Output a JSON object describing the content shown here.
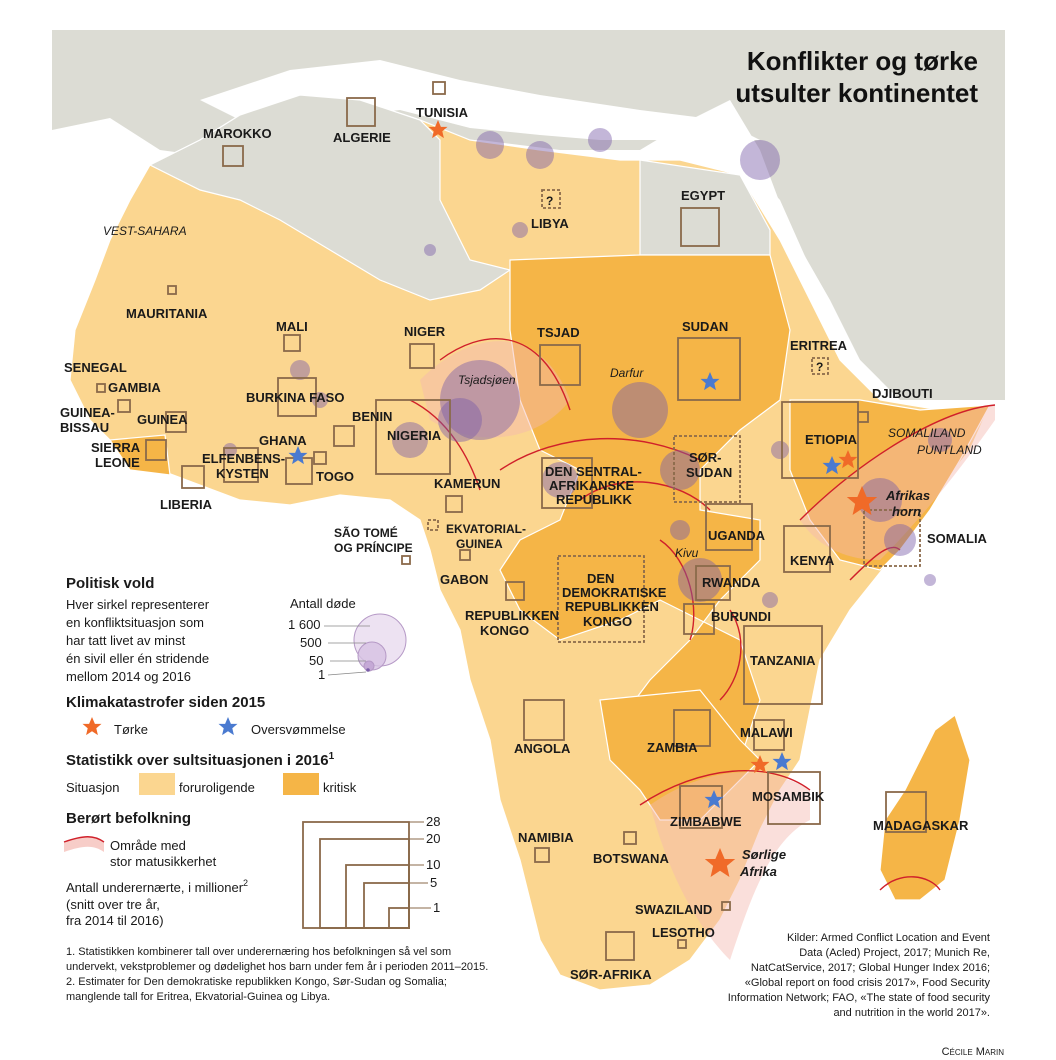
{
  "title_line1": "Konflikter og tørke",
  "title_line2": "utsulter kontinentet",
  "countries": {
    "marokko": "MAROKKO",
    "algerie": "ALGERIE",
    "tunisia": "TUNISIA",
    "libya": "LIBYA",
    "egypt": "EGYPT",
    "vest_sahara": "VEST-SAHARA",
    "mauritania": "MAURITANIA",
    "mali": "MALI",
    "niger": "NIGER",
    "tsjad": "TSJAD",
    "sudan": "SUDAN",
    "eritrea": "ERITREA",
    "djibouti": "DJIBOUTI",
    "senegal": "SENEGAL",
    "gambia": "GAMBIA",
    "guinea_bissau_1": "GUINEA-",
    "guinea_bissau_2": "BISSAU",
    "guinea": "GUINEA",
    "burkina": "BURKINA FASO",
    "benin": "BENIN",
    "sierra_1": "SIERRA",
    "sierra_2": "LEONE",
    "ghana": "GHANA",
    "nigeria": "NIGERIA",
    "elfenben_1": "ELFENBENS-",
    "elfenben_2": "KYSTEN",
    "togo": "TOGO",
    "liberia": "LIBERIA",
    "kamerun": "KAMERUN",
    "sentral_1": "DEN SENTRAL-",
    "sentral_2": "AFRIKANSKE",
    "sentral_3": "REPUBLIKK",
    "sorsudan_1": "SØR-",
    "sorsudan_2": "SUDAN",
    "etiopia": "ETIOPIA",
    "somaliland": "SOMALILAND",
    "puntland": "PUNTLAND",
    "saotome_1": "SÃO TOMÉ",
    "saotome_2": "OG PRÍNCIPE",
    "ekvatorial_1": "EKVATORIAL-",
    "ekvatorial_2": "GUINEA",
    "gabon": "GABON",
    "uganda": "UGANDA",
    "kenya": "KENYA",
    "somalia": "SOMALIA",
    "rwanda": "RWANDA",
    "burundi": "BURUNDI",
    "drk_1": "DEN",
    "drk_2": "DEMOKRATISKE",
    "drk_3": "REPUBLIKKEN",
    "drk_4": "KONGO",
    "rk_1": "REPUBLIKKEN",
    "rk_2": "KONGO",
    "tanzania": "TANZANIA",
    "angola": "ANGOLA",
    "zambia": "ZAMBIA",
    "malawi": "MALAWI",
    "mosambik": "MOSAMBIK",
    "zimbabwe": "ZIMBABWE",
    "madagaskar": "MADAGASKAR",
    "namibia": "NAMIBIA",
    "botswana": "BOTSWANA",
    "swaziland": "SWAZILAND",
    "lesotho": "LESOTHO",
    "sorafrika": "SØR-AFRIKA"
  },
  "places": {
    "tsjadsjoen": "Tsjadsjøen",
    "darfur": "Darfur",
    "kivu": "Kivu",
    "horn_1": "Afrikas",
    "horn_2": "horn",
    "south_1": "Sørlige",
    "south_2": "Afrika",
    "unknown_mark": "?"
  },
  "legend": {
    "violence_title": "Politisk vold",
    "violence_text": [
      "Hver sirkel representerer",
      "en konfliktsituasjon som",
      "har tatt livet av minst",
      "én sivil eller én stridende",
      "mellom 2014 og 2016"
    ],
    "deaths_title": "Antall døde",
    "deaths_values": [
      "1 600",
      "500",
      "50",
      "1"
    ],
    "climate_title": "Klimakatastrofer siden 2015",
    "drought": "Tørke",
    "flood": "Oversvømmelse",
    "stats_title": "Statistikk over sultsituasjonen i 2016",
    "stats_sup": "1",
    "situation": "Situasjon",
    "worrying": "foruroligende",
    "critical": "kritisk",
    "pop_title": "Berørt befolkning",
    "area_1": "Område med",
    "area_2": "stor matusikkerhet",
    "under_1": "Antall underernærte, i millioner",
    "under_sup": "2",
    "under_2": "(snitt over tre år,",
    "under_3": "fra 2014 til 2016)",
    "square_values": [
      "28",
      "20",
      "10",
      "5",
      "1"
    ]
  },
  "footnotes": [
    "1. Statistikken kombinerer tall over underernæring hos befolkningen så vel som",
    "undervekt, vekstproblemer og dødelighet hos barn under fem år i perioden 2011–2015.",
    "2. Estimater for Den demokratiske republikken Kongo, Sør-Sudan og Somalia;",
    "manglende tall for Eritrea, Ekvatorial-Guinea og Libya."
  ],
  "sources": [
    "Kilder: Armed Conflict Location and Event",
    "Data (Acled) Project, 2017; Munich Re,",
    "NatCatService, 2017; Global Hunger Index 2016;",
    "«Global report on food crisis 2017», Food Security",
    "Information Network; FAO, «The state of food security",
    "and nutrition in the world 2017»."
  ],
  "credit": "Cécile Marin",
  "colors": {
    "worrying": "#fbd690",
    "critical": "#f5b547",
    "grey_land": "#dcdcd4",
    "violence": "#7b5ea8",
    "drought_star": "#f06a28",
    "flood_star": "#4a7ad0",
    "insecurity": "#d0202a"
  }
}
